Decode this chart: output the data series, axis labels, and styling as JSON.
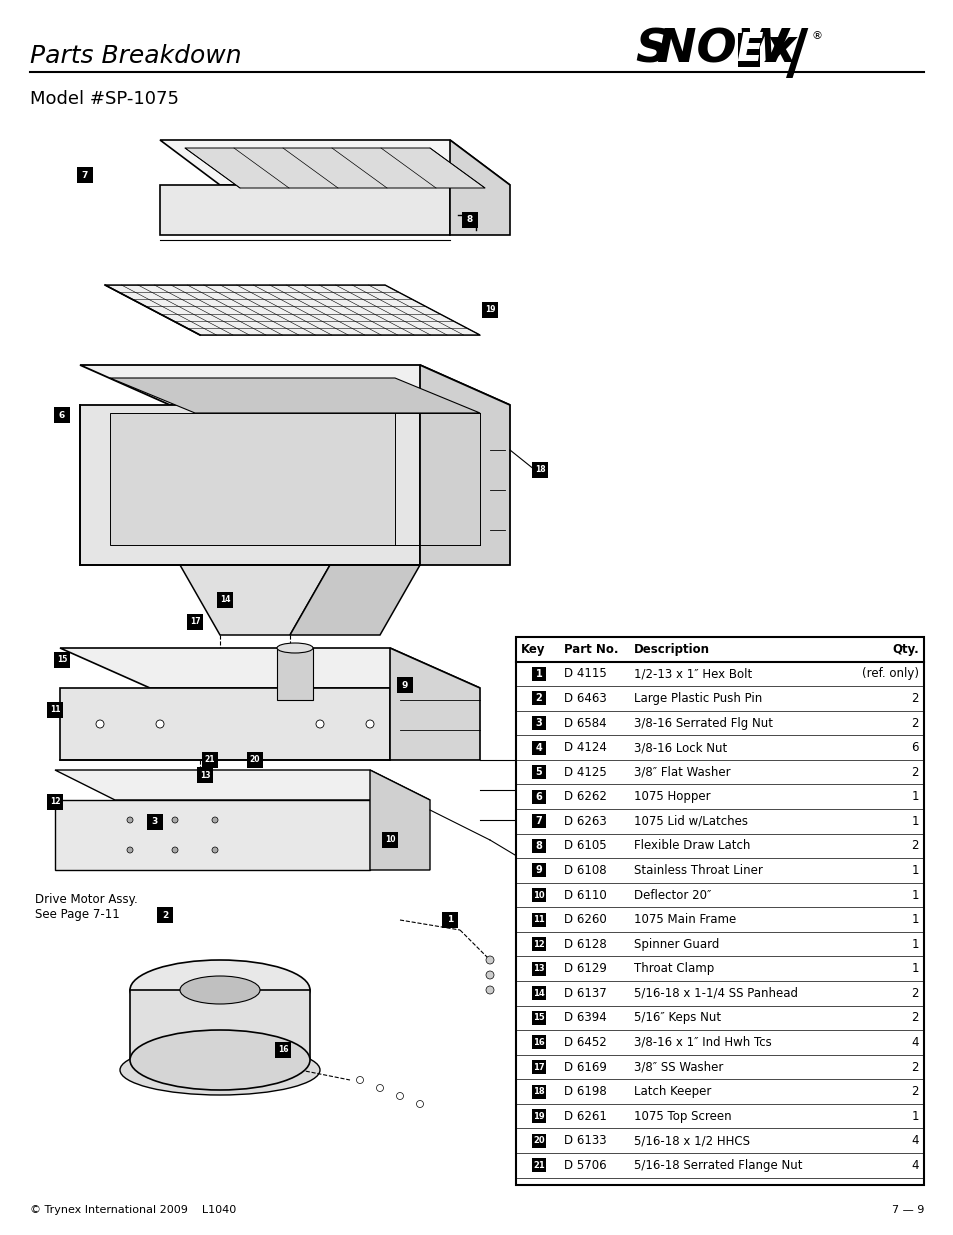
{
  "title": "Parts Breakdown",
  "subtitle": "Model #SP-1075",
  "footer_left": "© Trynex International 2009    L1040",
  "footer_right": "7 — 9",
  "table_headers": [
    "Key",
    "Part No.",
    "Description",
    "Qty."
  ],
  "table_rows": [
    [
      "1",
      "D 4115",
      "1/2-13 x 1″ Hex Bolt",
      "(ref. only)"
    ],
    [
      "2",
      "D 6463",
      "Large Plastic Push Pin",
      "2"
    ],
    [
      "3",
      "D 6584",
      "3/8-16 Serrated Flg Nut",
      "2"
    ],
    [
      "4",
      "D 4124",
      "3/8-16 Lock Nut",
      "6"
    ],
    [
      "5",
      "D 4125",
      "3/8″ Flat Washer",
      "2"
    ],
    [
      "6",
      "D 6262",
      "1075 Hopper",
      "1"
    ],
    [
      "7",
      "D 6263",
      "1075 Lid w/Latches",
      "1"
    ],
    [
      "8",
      "D 6105",
      "Flexible Draw Latch",
      "2"
    ],
    [
      "9",
      "D 6108",
      "Stainless Throat Liner",
      "1"
    ],
    [
      "10",
      "D 6110",
      "Deflector 20″",
      "1"
    ],
    [
      "11",
      "D 6260",
      "1075 Main Frame",
      "1"
    ],
    [
      "12",
      "D 6128",
      "Spinner Guard",
      "1"
    ],
    [
      "13",
      "D 6129",
      "Throat Clamp",
      "1"
    ],
    [
      "14",
      "D 6137",
      "5/16-18 x 1-1/4 SS Panhead",
      "2"
    ],
    [
      "15",
      "D 6394",
      "5/16″ Keps Nut",
      "2"
    ],
    [
      "16",
      "D 6452",
      "3/8-16 x 1″ Ind Hwh Tcs",
      "4"
    ],
    [
      "17",
      "D 6169",
      "3/8″ SS Washer",
      "2"
    ],
    [
      "18",
      "D 6198",
      "Latch Keeper",
      "2"
    ],
    [
      "19",
      "D 6261",
      "1075 Top Screen",
      "1"
    ],
    [
      "20",
      "D 6133",
      "5/16-18 x 1/2 HHCS",
      "4"
    ],
    [
      "21",
      "D 5706",
      "5/16-18 Serrated Flange Nut",
      "4"
    ]
  ],
  "note_text": "Drive Motor Assy.\nSee Page 7-11",
  "bg_color": "#ffffff",
  "fig_width": 9.54,
  "fig_height": 12.35,
  "dpi": 100
}
